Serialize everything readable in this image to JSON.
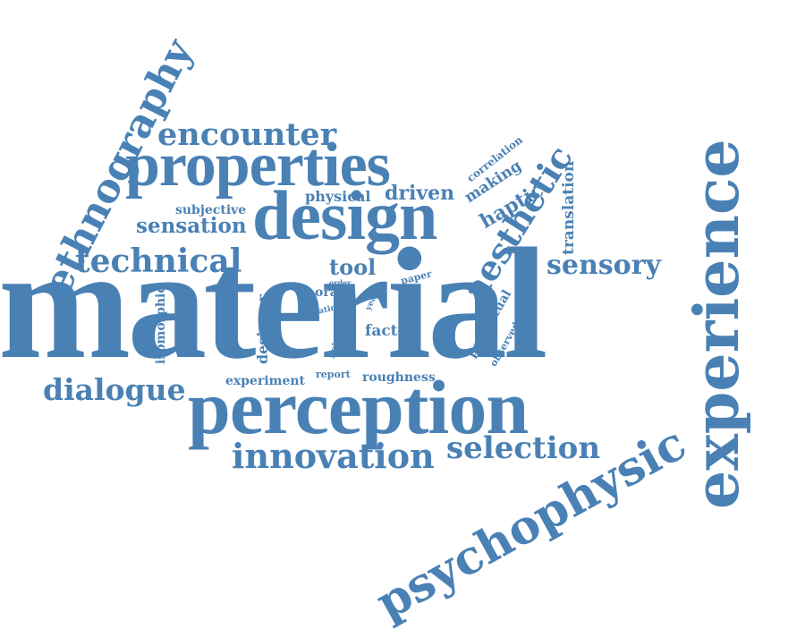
{
  "cloud": {
    "color": "#4a81b5",
    "words": {
      "material": "material",
      "experience": "experience",
      "perception": "perception",
      "design": "design",
      "properties": "properties",
      "psychophysic": "psychophysic",
      "ethnography": "ethnography",
      "innovation": "innovation",
      "selection": "selection",
      "technical": "technical",
      "encounter": "encounter",
      "aesthetic": "aesthetic",
      "dialogue": "dialogue",
      "sensory": "sensory",
      "sensation": "sensation",
      "translation": "translation",
      "haptic": "haptic",
      "driven": "driven",
      "physical": "physical",
      "making": "making",
      "correlation": "correlation",
      "subjective": "subjective",
      "tool": "tool",
      "paper": "paper",
      "oral": "oral",
      "order": "order",
      "year": "year",
      "rating": "rating",
      "isomorphic": "isomorphic",
      "designer": "designer",
      "scientist": "scientist",
      "factor": "factor",
      "perceptual": "perceptual",
      "observed": "observed",
      "experiment": "experiment",
      "report": "report",
      "roughness": "roughness"
    }
  }
}
